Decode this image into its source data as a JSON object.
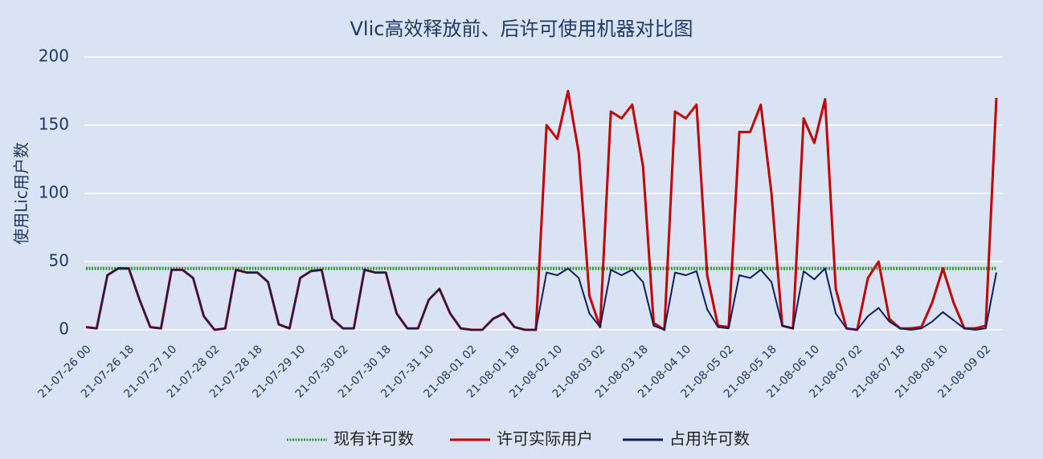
{
  "chart_data": {
    "type": "line",
    "title": "Vlic高效释放前、后许可使用机器对比图",
    "y_label": "使用Lic用户数",
    "categories": [
      "21-07-26 00",
      null,
      null,
      null,
      "21-07-26 18",
      null,
      null,
      null,
      "21-07-27 10",
      null,
      null,
      null,
      "21-07-28 02",
      null,
      null,
      null,
      "21-07-28 18",
      null,
      null,
      null,
      "21-07-29 10",
      null,
      null,
      null,
      "21-07-30 02",
      null,
      null,
      null,
      "21-07-30 18",
      null,
      null,
      null,
      "21-07-31 10",
      null,
      null,
      null,
      "21-08-01 02",
      null,
      null,
      null,
      "21-08-01 18",
      null,
      null,
      null,
      "21-08-02 10",
      null,
      null,
      null,
      "21-08-03 02",
      null,
      null,
      null,
      "21-08-03 18",
      null,
      null,
      null,
      "21-08-04 10",
      null,
      null,
      null,
      "21-08-05 02",
      null,
      null,
      null,
      "21-08-05 18",
      null,
      null,
      null,
      "21-08-06 10",
      null,
      null,
      null,
      "21-08-07 02",
      null,
      null,
      null,
      "21-08-07 18",
      null,
      null,
      null,
      "21-08-08 10",
      null,
      null,
      null,
      "21-08-09 02",
      null
    ],
    "series": [
      {
        "name": "现有许可数",
        "color": "#2e9a2e",
        "dashed": true,
        "values": [
          45,
          45,
          45,
          45,
          45,
          45,
          45,
          45,
          45,
          45,
          45,
          45,
          45,
          45,
          45,
          45,
          45,
          45,
          45,
          45,
          45,
          45,
          45,
          45,
          45,
          45,
          45,
          45,
          45,
          45,
          45,
          45,
          45,
          45,
          45,
          45,
          45,
          45,
          45,
          45,
          45,
          45,
          45,
          45,
          45,
          45,
          45,
          45,
          45,
          45,
          45,
          45,
          45,
          45,
          45,
          45,
          45,
          45,
          45,
          45,
          45,
          45,
          45,
          45,
          45,
          45,
          45,
          45,
          45,
          45,
          45,
          45,
          45,
          45,
          45,
          45,
          45,
          45,
          45,
          45,
          45,
          45,
          45,
          45,
          45,
          45
        ]
      },
      {
        "name": "许可实际用户",
        "color": "#c00000",
        "values": [
          2,
          1,
          40,
          45,
          45,
          22,
          2,
          1,
          44,
          44,
          38,
          10,
          0,
          1,
          44,
          42,
          42,
          35,
          4,
          1,
          38,
          43,
          44,
          8,
          1,
          1,
          44,
          42,
          42,
          12,
          1,
          1,
          22,
          30,
          12,
          1,
          0,
          0,
          8,
          12,
          2,
          0,
          0,
          150,
          140,
          175,
          130,
          25,
          2,
          160,
          155,
          165,
          120,
          5,
          0,
          160,
          155,
          165,
          40,
          3,
          2,
          145,
          145,
          165,
          100,
          3,
          1,
          155,
          137,
          169,
          30,
          1,
          0,
          38,
          50,
          8,
          1,
          1,
          2,
          20,
          45,
          20,
          1,
          1,
          3,
          170
        ]
      },
      {
        "name": "占用许可数",
        "color": "#0d1f5c",
        "values": [
          2,
          1,
          40,
          45,
          45,
          22,
          2,
          1,
          44,
          44,
          38,
          10,
          0,
          1,
          44,
          42,
          42,
          35,
          4,
          1,
          38,
          43,
          44,
          8,
          1,
          1,
          44,
          42,
          42,
          12,
          1,
          1,
          22,
          30,
          12,
          1,
          0,
          0,
          8,
          12,
          2,
          0,
          0,
          42,
          40,
          45,
          38,
          12,
          2,
          44,
          40,
          44,
          35,
          3,
          0,
          42,
          40,
          43,
          15,
          2,
          1,
          40,
          38,
          44,
          35,
          3,
          1,
          43,
          37,
          45,
          12,
          1,
          0,
          10,
          16,
          6,
          1,
          0,
          1,
          6,
          13,
          7,
          1,
          0,
          1,
          42
        ]
      }
    ],
    "ylim": [
      0,
      200
    ],
    "yticks": [
      0,
      50,
      100,
      150,
      200
    ],
    "grid": true,
    "legend": "bottom"
  }
}
